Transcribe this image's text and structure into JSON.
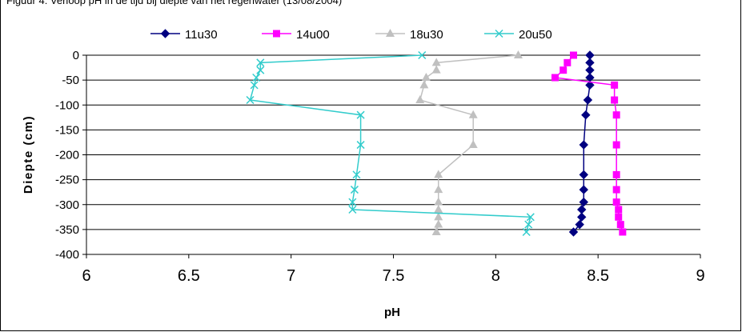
{
  "caption": "Figuur 4: Verloop pH in de tijd bij diepte van het regenwater (13/08/2004)",
  "chart_data": {
    "type": "line",
    "orientation": "depth-profile",
    "xlabel": "pH",
    "ylabel": "Diepte (cm)",
    "xlim": [
      6,
      9
    ],
    "ylim": [
      -400,
      0
    ],
    "x_ticks": [
      "6",
      "6.5",
      "7",
      "7.5",
      "8",
      "8.5",
      "9"
    ],
    "y_ticks": [
      "0",
      "-50",
      "-100",
      "-150",
      "-200",
      "-250",
      "-300",
      "-350",
      "-400"
    ],
    "grid": "horizontal",
    "legend": "top",
    "series": [
      {
        "name": "11u30",
        "color": "#000080",
        "marker": "diamond",
        "points": [
          [
            8.46,
            0
          ],
          [
            8.46,
            -15
          ],
          [
            8.46,
            -30
          ],
          [
            8.46,
            -45
          ],
          [
            8.46,
            -60
          ],
          [
            8.45,
            -90
          ],
          [
            8.44,
            -120
          ],
          [
            8.43,
            -180
          ],
          [
            8.43,
            -240
          ],
          [
            8.43,
            -270
          ],
          [
            8.43,
            -295
          ],
          [
            8.42,
            -310
          ],
          [
            8.42,
            -325
          ],
          [
            8.41,
            -340
          ],
          [
            8.38,
            -355
          ]
        ]
      },
      {
        "name": "14u00",
        "color": "#FF00FF",
        "marker": "square",
        "points": [
          [
            8.38,
            0
          ],
          [
            8.35,
            -15
          ],
          [
            8.33,
            -30
          ],
          [
            8.29,
            -45
          ],
          [
            8.58,
            -60
          ],
          [
            8.58,
            -90
          ],
          [
            8.59,
            -120
          ],
          [
            8.59,
            -180
          ],
          [
            8.59,
            -240
          ],
          [
            8.59,
            -270
          ],
          [
            8.59,
            -295
          ],
          [
            8.6,
            -310
          ],
          [
            8.6,
            -325
          ],
          [
            8.61,
            -340
          ],
          [
            8.62,
            -355
          ]
        ]
      },
      {
        "name": "18u30",
        "color": "#C0C0C0",
        "marker": "triangle",
        "points": [
          [
            8.11,
            0
          ],
          [
            7.71,
            -15
          ],
          [
            7.71,
            -30
          ],
          [
            7.66,
            -45
          ],
          [
            7.65,
            -60
          ],
          [
            7.63,
            -90
          ],
          [
            7.89,
            -120
          ],
          [
            7.89,
            -180
          ],
          [
            7.72,
            -240
          ],
          [
            7.72,
            -270
          ],
          [
            7.72,
            -295
          ],
          [
            7.72,
            -310
          ],
          [
            7.72,
            -325
          ],
          [
            7.72,
            -340
          ],
          [
            7.71,
            -355
          ]
        ]
      },
      {
        "name": "20u50",
        "color": "#33CCCC",
        "marker": "x",
        "points": [
          [
            7.64,
            0
          ],
          [
            6.85,
            -15
          ],
          [
            6.85,
            -30
          ],
          [
            6.83,
            -45
          ],
          [
            6.82,
            -60
          ],
          [
            6.8,
            -90
          ],
          [
            7.34,
            -120
          ],
          [
            7.34,
            -180
          ],
          [
            7.32,
            -240
          ],
          [
            7.31,
            -270
          ],
          [
            7.3,
            -295
          ],
          [
            7.3,
            -310
          ],
          [
            8.17,
            -325
          ],
          [
            8.16,
            -340
          ],
          [
            8.15,
            -355
          ]
        ]
      }
    ]
  }
}
